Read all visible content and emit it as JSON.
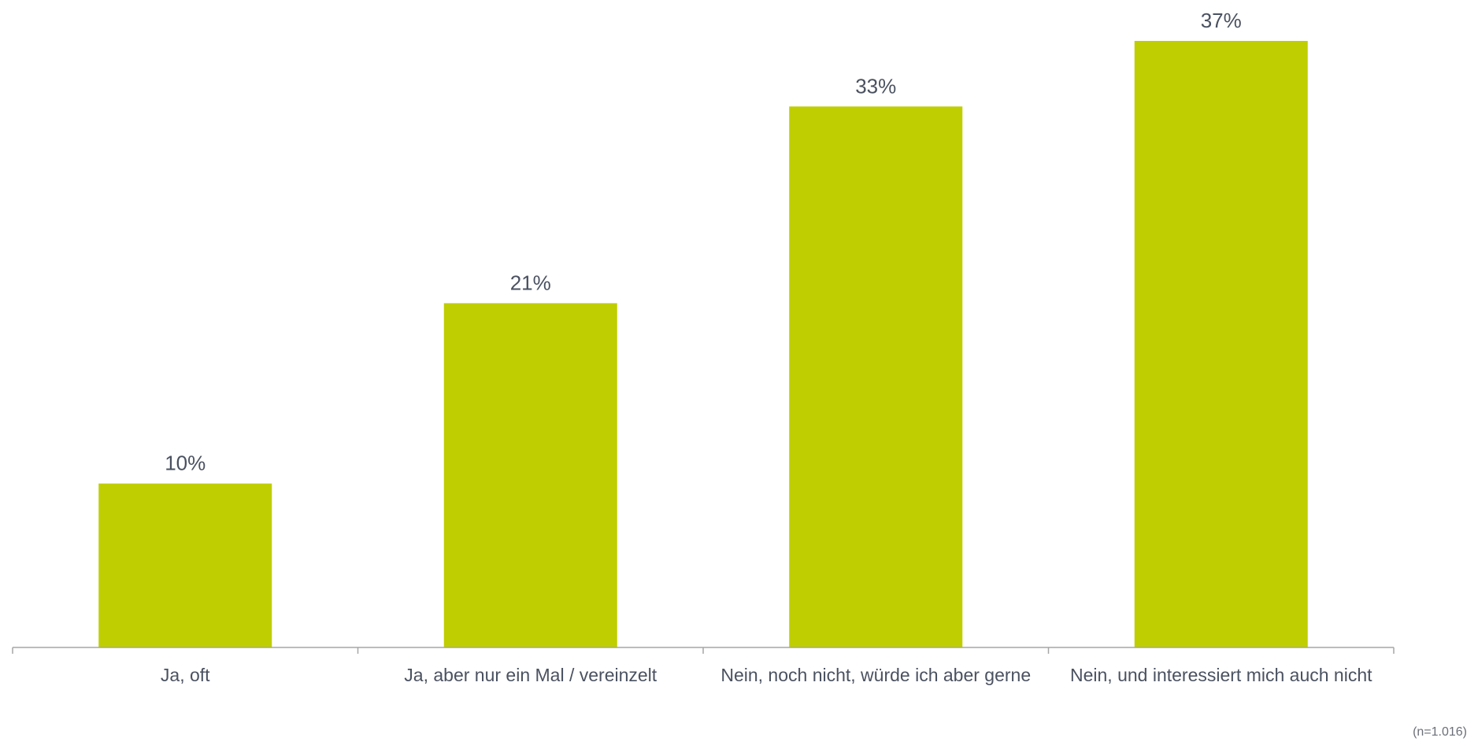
{
  "chart_data": {
    "type": "bar",
    "categories": [
      "Ja, oft",
      "Ja, aber nur ein Mal / vereinzelt",
      "Nein, noch nicht, würde ich aber gerne",
      "Nein, und interessiert mich auch nicht"
    ],
    "values": [
      10,
      21,
      33,
      37
    ],
    "value_labels": [
      "10%",
      "21%",
      "33%",
      "37%"
    ],
    "ylim": [
      0,
      37
    ],
    "grid": false,
    "legend": "none",
    "bar_color": "#bfce00",
    "axis_color": "#a6a6a6",
    "text_color": "#4a5160"
  },
  "note": "(n=1.016)"
}
